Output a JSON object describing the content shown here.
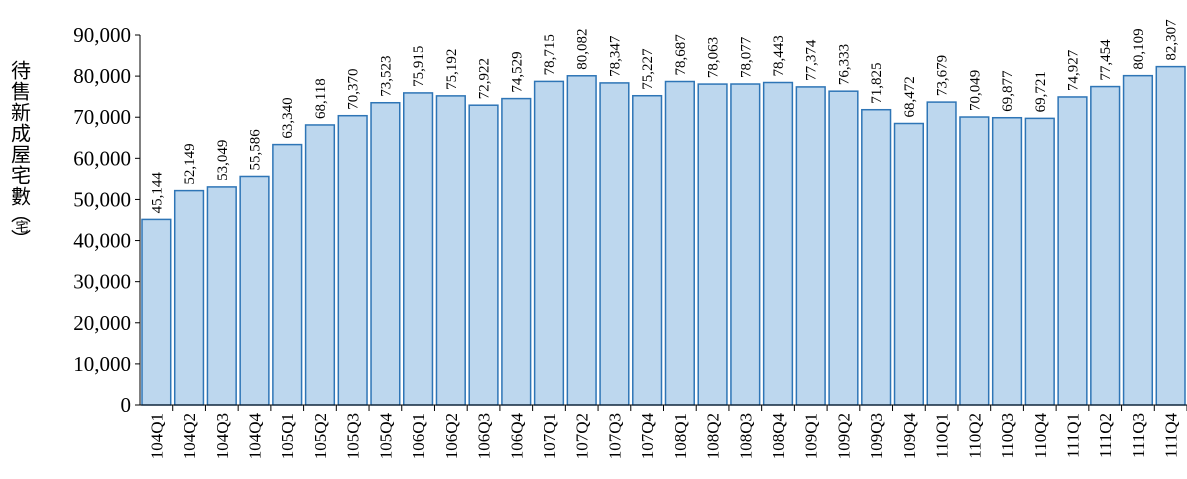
{
  "chart_data": {
    "type": "bar",
    "ylabel": "待售新成屋宅數",
    "ylabel_unit": "宅",
    "ylabel_paren_open": "（",
    "ylabel_paren_close": "）",
    "ylim": [
      0,
      90000
    ],
    "ytick_step": 10000,
    "grid": false,
    "bar_color": "#bdd7ee",
    "bar_edge_color": "#2e75b6",
    "categories": [
      "104Q1",
      "104Q2",
      "104Q3",
      "104Q4",
      "105Q1",
      "105Q2",
      "105Q3",
      "105Q4",
      "106Q1",
      "106Q2",
      "106Q3",
      "106Q4",
      "107Q1",
      "107Q2",
      "107Q3",
      "107Q4",
      "108Q1",
      "108Q2",
      "108Q3",
      "108Q4",
      "109Q1",
      "109Q2",
      "109Q3",
      "109Q4",
      "110Q1",
      "110Q2",
      "110Q3",
      "110Q4",
      "111Q1",
      "111Q2",
      "111Q3",
      "111Q4"
    ],
    "values": [
      45144,
      52149,
      53049,
      55586,
      63340,
      68118,
      70370,
      73523,
      75915,
      75192,
      72922,
      74529,
      78715,
      80082,
      78347,
      75227,
      78687,
      78063,
      78077,
      78443,
      77374,
      76333,
      71825,
      68472,
      73679,
      70049,
      69877,
      69721,
      74927,
      77454,
      80109,
      82307
    ]
  }
}
